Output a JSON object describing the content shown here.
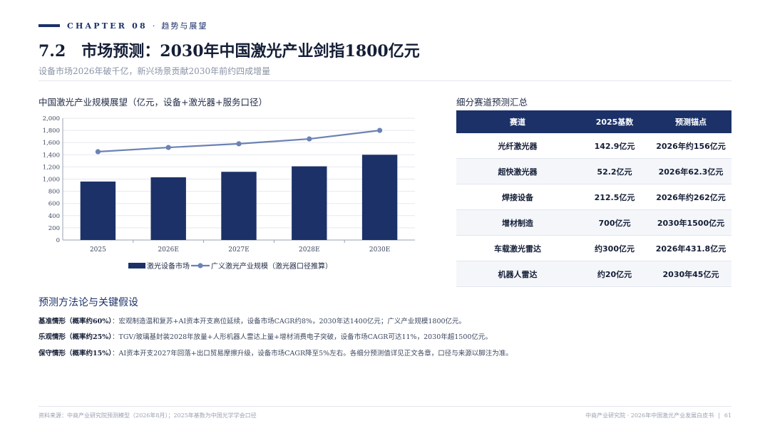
{
  "header": {
    "chapter_label": "CHAPTER 08",
    "chapter_sep": "·",
    "chapter_cn": "趋势与展望",
    "section_number": "7.2",
    "title": "市场预测：2030年中国激光产业剑指1800亿元",
    "subtitle": "设备市场2026年破千亿，新兴场景贡献2030年前约四成增量"
  },
  "chart": {
    "heading": "中国激光产业规模展望（亿元，设备+激光器+服务口径）"
  },
  "chart_data": {
    "type": "bar",
    "categories": [
      "2025",
      "2026E",
      "2027E",
      "2028E",
      "2030E"
    ],
    "series": [
      {
        "name": "激光设备市场",
        "type": "bar",
        "values": [
          960,
          1030,
          1120,
          1210,
          1400
        ],
        "color": "#1b3168"
      },
      {
        "name": "广义激光产业规模（激光器口径推算）",
        "type": "line",
        "values": [
          1450,
          1520,
          1580,
          1660,
          1800
        ],
        "color": "#6b82b4"
      }
    ],
    "ylim": [
      0,
      2000
    ],
    "yticks": [
      "0",
      "200",
      "400",
      "600",
      "800",
      "1,000",
      "1,200",
      "1,400",
      "1,600",
      "1,800",
      "2,000"
    ],
    "grid": true,
    "legend": "bottom"
  },
  "table": {
    "heading": "细分赛道预测汇总",
    "headers": [
      "赛道",
      "2025基数",
      "预测锚点"
    ],
    "rows": [
      [
        "光纤激光器",
        "142.9亿元",
        "2026年约156亿元"
      ],
      [
        "超快激光器",
        "52.2亿元",
        "2026年62.3亿元"
      ],
      [
        "焊接设备",
        "212.5亿元",
        "2026年约262亿元"
      ],
      [
        "增材制造",
        "700亿元",
        "2030年1500亿元"
      ],
      [
        "车载激光雷达",
        "约300亿元",
        "2026年431.8亿元"
      ],
      [
        "机器人雷达",
        "约20亿元",
        "2030年45亿元"
      ]
    ]
  },
  "methodology": {
    "heading": "预测方法论与关键假设",
    "scenarios": [
      {
        "label": "基准情形（概率约60%）",
        "text": "：宏观制造温和复苏+AI资本开支高位延续，设备市场CAGR约8%，2030年达1400亿元；广义产业规模1800亿元。"
      },
      {
        "label": "乐观情形（概率约25%）",
        "text": "：TGV/玻璃基封装2028年放量+人形机器人雷达上量+增材消费电子突破，设备市场CAGR可达11%，2030年超1500亿元。"
      },
      {
        "label": "保守情形（概率约15%）",
        "text": "：AI资本开支2027年回落+出口贸易摩擦升级，设备市场CAGR降至5%左右。各细分预测值详见正文各章，口径与来源以脚注为准。"
      }
    ]
  },
  "footer": {
    "source": "资料来源：中商产业研究院预测模型（2026年8月）；2025年基数为中国光学学会口径",
    "publisher": "中商产业研究院 · 2026年中国激光产业发展白皮书",
    "divider": "|",
    "page": "61"
  }
}
